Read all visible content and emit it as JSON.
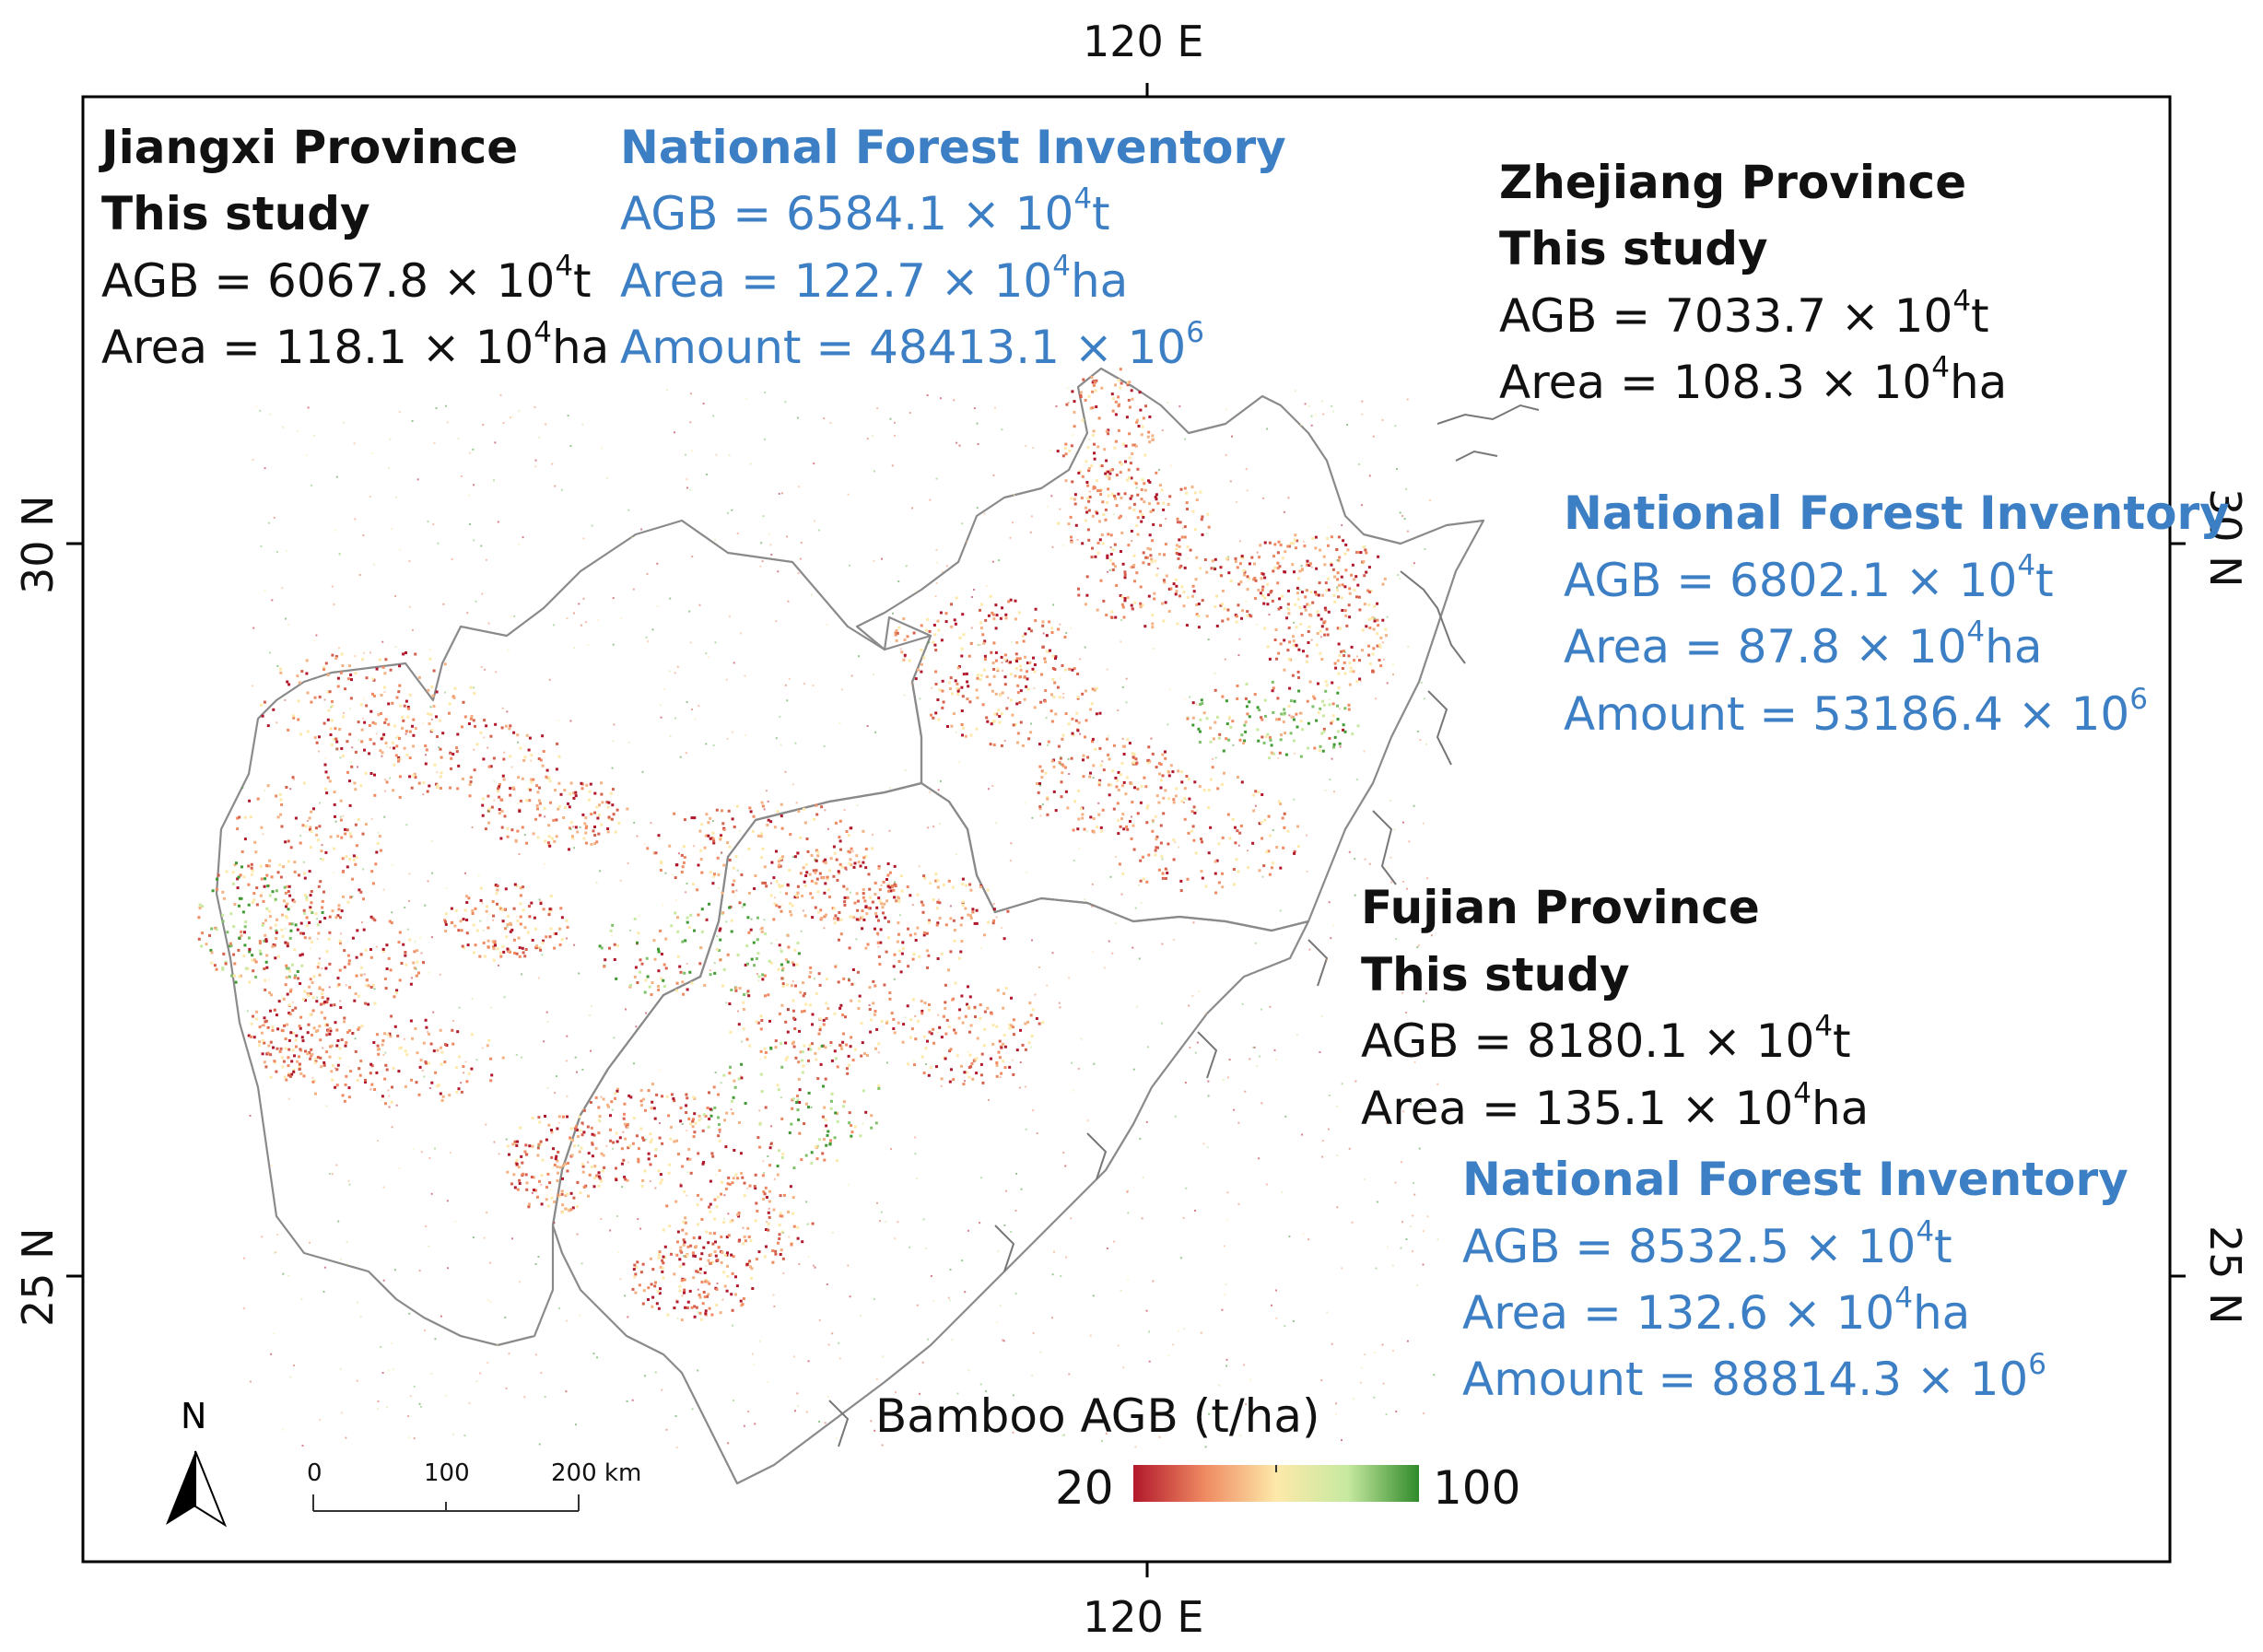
{
  "axes": {
    "top": "120 E",
    "bottom": "120 E",
    "left": "30 N",
    "left_lower": "25 N",
    "right": "30 N",
    "right_lower": "25 N"
  },
  "jiangxi": {
    "title": "Jiangxi Province",
    "study": "This study",
    "agb_prefix": "AGB = 6067.8 × 10",
    "agb_exp": "4",
    "agb_unit": "t",
    "area_prefix": "Area = 118.1 × 10",
    "area_exp": "4",
    "area_unit": "ha",
    "nfi": {
      "title": "National Forest Inventory",
      "agb_prefix": "AGB = 6584.1 × 10",
      "agb_exp": "4",
      "agb_unit": "t",
      "area_prefix": "Area = 122.7 × 10",
      "area_exp": "4",
      "area_unit": "ha",
      "amount_prefix": "Amount = 48413.1 × 10",
      "amount_exp": "6"
    }
  },
  "zhejiang": {
    "title": "Zhejiang Province",
    "study": "This study",
    "agb_prefix": "AGB = 7033.7 × 10",
    "agb_exp": "4",
    "agb_unit": "t",
    "area_prefix": "Area = 108.3 × 10",
    "area_exp": "4",
    "area_unit": "ha",
    "nfi": {
      "title": "National Forest Inventory",
      "agb_prefix": "AGB = 6802.1 × 10",
      "agb_exp": "4",
      "agb_unit": "t",
      "area_prefix": "Area = 87.8 × 10",
      "area_exp": "4",
      "area_unit": "ha",
      "amount_prefix": "Amount = 53186.4 × 10",
      "amount_exp": "6"
    }
  },
  "fujian": {
    "title": "Fujian Province",
    "study": "This study",
    "agb_prefix": "AGB = 8180.1 × 10",
    "agb_exp": "4",
    "agb_unit": "t",
    "area_prefix": "Area = 135.1 × 10",
    "area_exp": "4",
    "area_unit": "ha",
    "nfi": {
      "title": "National Forest Inventory",
      "agb_prefix": "AGB = 8532.5 × 10",
      "agb_exp": "4",
      "agb_unit": "t",
      "area_prefix": "Area = 132.6 × 10",
      "area_exp": "4",
      "area_unit": "ha",
      "amount_prefix": "Amount = 88814.3 × 10",
      "amount_exp": "6"
    }
  },
  "legend": {
    "title": "Bamboo AGB (t/ha)",
    "min": "20",
    "max": "100",
    "colors": [
      "#b2182b",
      "#ef8a62",
      "#fde9a9",
      "#c7e9a0",
      "#4aa43a",
      "#2f8a2a"
    ]
  },
  "north_arrow": {
    "label": "N",
    "icon": "north-arrow-icon"
  },
  "scale_bar": {
    "labels": [
      "0",
      "100",
      "200 km"
    ]
  },
  "colors": {
    "study_text": "#111111",
    "nfi_text": "#3d7fc4",
    "boundary": "#8a8a8a"
  }
}
